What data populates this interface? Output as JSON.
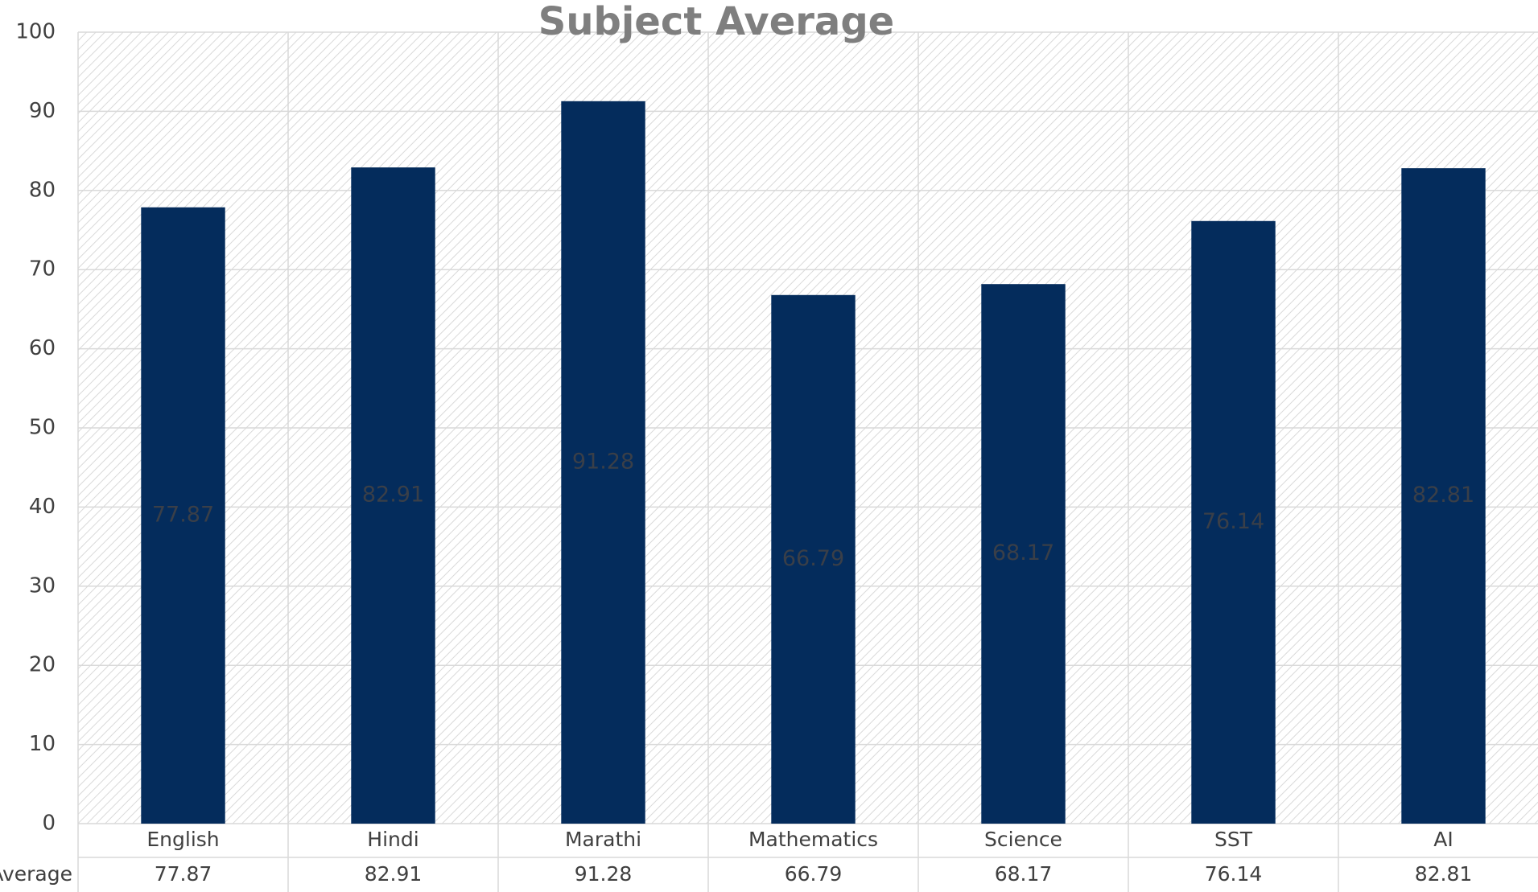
{
  "chart_data": {
    "type": "bar",
    "title": "Subject Average",
    "categories": [
      "English",
      "Hindi",
      "Marathi",
      "Mathematics",
      "Science",
      "SST",
      "AI"
    ],
    "series": [
      {
        "name": "Average",
        "color": "#042c5c",
        "values": [
          77.87,
          82.91,
          91.28,
          66.79,
          68.17,
          76.14,
          82.81
        ]
      }
    ],
    "ylim": [
      0,
      100
    ],
    "yticks": [
      0,
      10,
      20,
      30,
      40,
      50,
      60,
      70,
      80,
      90,
      100
    ],
    "grid": true
  }
}
